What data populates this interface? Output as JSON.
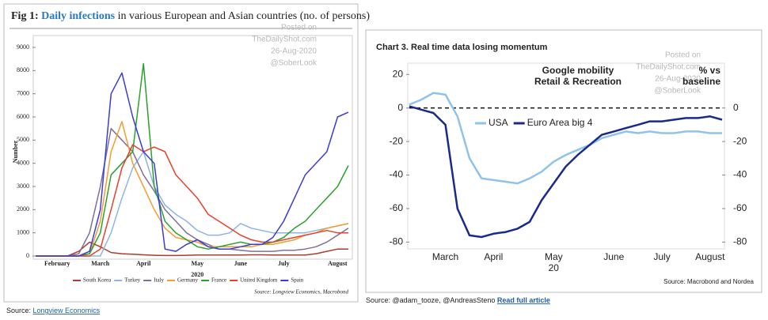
{
  "chart_data": [
    {
      "type": "line",
      "title_prefix": "Fig 1: ",
      "title_highlight": "Daily infections",
      "title_suffix": " in various European and Asian countries (no. of persons)",
      "ylabel": "Number",
      "x_sublabel": "2020",
      "source": "Source: Longview Economics, Macrobond",
      "watermark": [
        "Posted on",
        "TheDailyShot.com",
        "26-Aug-2020",
        "@SoberLook"
      ],
      "categories": [
        null,
        null,
        "February",
        null,
        null,
        null,
        "March",
        null,
        null,
        null,
        "April",
        null,
        null,
        null,
        null,
        "May",
        null,
        null,
        null,
        "June",
        null,
        null,
        null,
        "July",
        null,
        null,
        null,
        null,
        "August",
        null
      ],
      "ylim": [
        0,
        9000
      ],
      "yticks": [
        0,
        1000,
        2000,
        3000,
        4000,
        5000,
        6000,
        7000,
        8000,
        9000
      ],
      "legend": "bottom",
      "series": [
        {
          "name": "South Korea",
          "color": "#b03a2e",
          "values": [
            0,
            0,
            0,
            10,
            200,
            600,
            400,
            150,
            100,
            80,
            50,
            30,
            20,
            20,
            30,
            40,
            40,
            40,
            40,
            40,
            50,
            50,
            40,
            40,
            40,
            40,
            100,
            200,
            300,
            300
          ]
        },
        {
          "name": "Turkey",
          "color": "#8db4e2",
          "values": [
            0,
            0,
            0,
            0,
            0,
            0,
            0,
            1000,
            2500,
            3800,
            4500,
            3000,
            2200,
            1800,
            1500,
            1100,
            900,
            900,
            1000,
            1400,
            1200,
            1100,
            1000,
            1000,
            1000,
            1000,
            1100,
            1200,
            1300,
            1400
          ]
        },
        {
          "name": "Italy",
          "color": "#7f6f9a",
          "values": [
            0,
            0,
            0,
            0,
            100,
            1000,
            3000,
            5500,
            5000,
            4500,
            3500,
            2800,
            2000,
            1500,
            1000,
            700,
            500,
            300,
            300,
            250,
            200,
            200,
            200,
            250,
            250,
            300,
            400,
            600,
            900,
            1200
          ]
        },
        {
          "name": "Germany",
          "color": "#f39c33",
          "values": [
            0,
            0,
            0,
            0,
            0,
            100,
            1500,
            4500,
            5800,
            4000,
            3000,
            2000,
            1200,
            800,
            700,
            600,
            400,
            400,
            400,
            400,
            400,
            500,
            500,
            600,
            700,
            900,
            1000,
            1200,
            1300,
            1400
          ]
        },
        {
          "name": "France",
          "color": "#2ca02c",
          "values": [
            0,
            0,
            0,
            0,
            0,
            100,
            1000,
            3500,
            4000,
            4500,
            8300,
            3000,
            1500,
            1000,
            700,
            400,
            300,
            400,
            500,
            600,
            500,
            500,
            600,
            800,
            1200,
            1500,
            2000,
            2500,
            3000,
            3900
          ]
        },
        {
          "name": "United Kingdom",
          "color": "#e8412c",
          "values": [
            0,
            0,
            0,
            0,
            0,
            0,
            300,
            2000,
            3800,
            4800,
            4500,
            4700,
            4500,
            3500,
            3000,
            2500,
            1800,
            1500,
            1200,
            900,
            700,
            600,
            600,
            700,
            800,
            900,
            1000,
            1100,
            1000,
            1000
          ]
        },
        {
          "name": "Spain",
          "color": "#3b3bd6",
          "values": [
            0,
            0,
            0,
            0,
            0,
            200,
            2000,
            7000,
            7900,
            6000,
            4500,
            4000,
            300,
            200,
            500,
            700,
            400,
            300,
            300,
            400,
            500,
            500,
            800,
            1500,
            2500,
            3500,
            4000,
            4500,
            6000,
            6200
          ]
        }
      ]
    },
    {
      "type": "line",
      "title": "Chart 3. Real time data losing momentum",
      "annotation": [
        "Google mobility",
        "Retail & Recreation"
      ],
      "y2_label": [
        "% vs",
        "baseline"
      ],
      "x_sublabel": "20",
      "source": "Source: Macrobond and Nordea",
      "watermark": [
        "Posted on",
        "TheDailyShot.com",
        "26-Aug-2020",
        "@SoberLook"
      ],
      "categories": [
        null,
        null,
        null,
        "March",
        null,
        null,
        null,
        "April",
        null,
        null,
        null,
        null,
        "May",
        null,
        null,
        null,
        null,
        "June",
        null,
        null,
        null,
        "July",
        null,
        null,
        null,
        "August",
        null
      ],
      "ylim": [
        -85,
        22
      ],
      "yticks": [
        -80,
        -60,
        -40,
        -20,
        0,
        20
      ],
      "y2lim": [
        -85,
        22
      ],
      "y2ticks": [
        -80,
        -60,
        -40,
        -20,
        0
      ],
      "zero_line": "dashed",
      "legend": "upper left",
      "series": [
        {
          "name": "USA",
          "color": "#8fc3ea",
          "values": [
            2,
            5,
            9,
            8,
            -5,
            -30,
            -42,
            -43,
            -44,
            -45,
            -42,
            -38,
            -32,
            -28,
            -25,
            -22,
            -18,
            -16,
            -14,
            -15,
            -14,
            -15,
            -15,
            -14,
            -14,
            -15,
            -15
          ]
        },
        {
          "name": "Euro Area big 4",
          "color": "#1a2a8c",
          "values": [
            1,
            -1,
            -3,
            -10,
            -60,
            -76,
            -77,
            -75,
            -74,
            -72,
            -68,
            -55,
            -45,
            -35,
            -28,
            -22,
            -16,
            -14,
            -12,
            -10,
            -8,
            -8,
            -7,
            -6,
            -6,
            -5,
            -7
          ]
        }
      ]
    }
  ],
  "captions": [
    {
      "text": "Source: ",
      "link": "Longview Economics"
    },
    {
      "text": "Source: @adam_tooze, @AndreasSteno ",
      "link": "Read full article"
    }
  ]
}
